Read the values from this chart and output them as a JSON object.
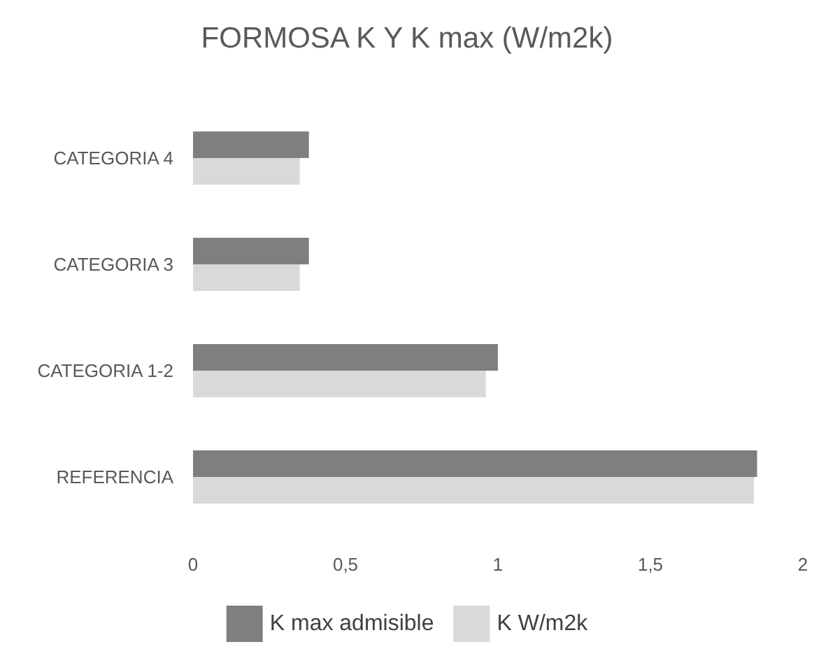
{
  "chart_data": {
    "type": "bar",
    "orientation": "horizontal",
    "title": "FORMOSA K Y K max (W/m2k)",
    "categories": [
      "CATEGORIA 4",
      "CATEGORIA 3",
      "CATEGORIA 1-2",
      "REFERENCIA"
    ],
    "series": [
      {
        "name": "K max admisible",
        "color": "#7f7f7f",
        "values": [
          0.38,
          0.38,
          1.0,
          1.85
        ]
      },
      {
        "name": "K W/m2k",
        "color": "#d9d9d9",
        "values": [
          0.35,
          0.35,
          0.96,
          1.84
        ]
      }
    ],
    "xlim": [
      0,
      2
    ],
    "xticks": [
      0,
      {
        "value": 0.5,
        "label": "0,5"
      },
      1,
      {
        "value": 1.5,
        "label": "1,5"
      },
      2
    ],
    "grid": false,
    "legend": "bottom"
  }
}
